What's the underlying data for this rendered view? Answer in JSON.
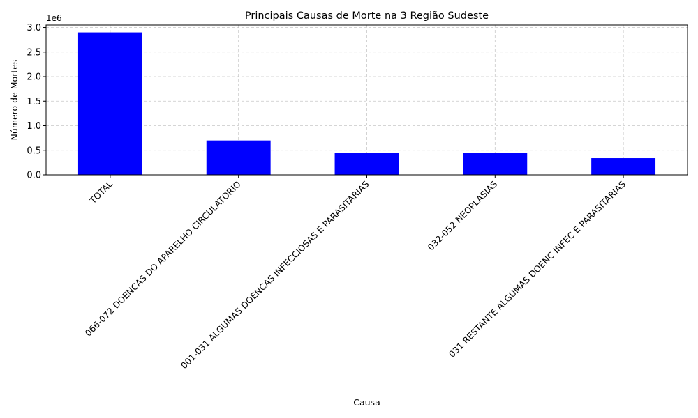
{
  "chart_data": {
    "type": "bar",
    "title": "Principais Causas de Morte na 3 Região Sudeste",
    "xlabel": "Causa",
    "ylabel": "Número de Mortes",
    "y_scale_label": "1e6",
    "categories": [
      "TOTAL",
      "066-072 DOENCAS DO APARELHO CIRCULATORIO",
      "001-031 ALGUMAS DOENCAS INFECCIOSAS E PARASITARIAS",
      "032-052 NEOPLASIAS",
      "031 RESTANTE ALGUMAS DOENC INFEC E PARASITARIAS"
    ],
    "values": [
      2900000,
      700000,
      450000,
      450000,
      340000
    ],
    "ylim": [
      0,
      3050000
    ],
    "yticks": [
      0,
      500000,
      1000000,
      1500000,
      2000000,
      2500000,
      3000000
    ],
    "ytick_labels": [
      "0.0",
      "0.5",
      "1.0",
      "1.5",
      "2.0",
      "2.5",
      "3.0"
    ],
    "bar_color": "#0000ff",
    "grid": true,
    "legend": "none"
  }
}
